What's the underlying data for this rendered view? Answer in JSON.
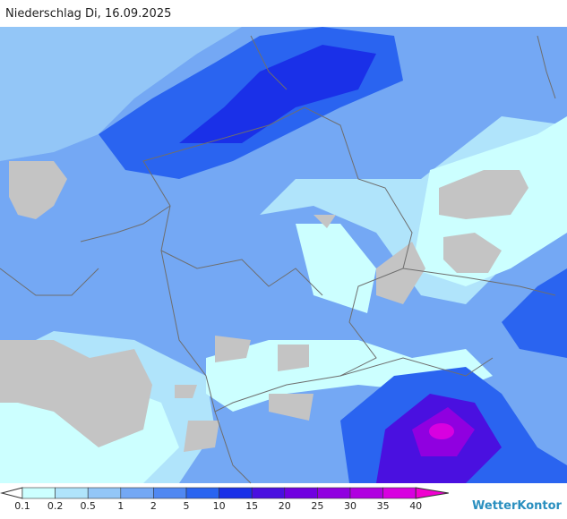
{
  "header": {
    "title": "Niederschlag Di, 16.09.2025"
  },
  "legend": {
    "labels": [
      "0.1",
      "0.2",
      "0.5",
      "1",
      "2",
      "5",
      "10",
      "15",
      "20",
      "25",
      "30",
      "35",
      "40"
    ],
    "colors": [
      "#ccffff",
      "#b0e4fb",
      "#93c6f7",
      "#74a8f4",
      "#5088f2",
      "#2a64f0",
      "#1a30e8",
      "#4a10e0",
      "#7000e0",
      "#9000e0",
      "#b000e0",
      "#d800e0",
      "#f000d0"
    ]
  },
  "brand": "WetterKontor"
}
